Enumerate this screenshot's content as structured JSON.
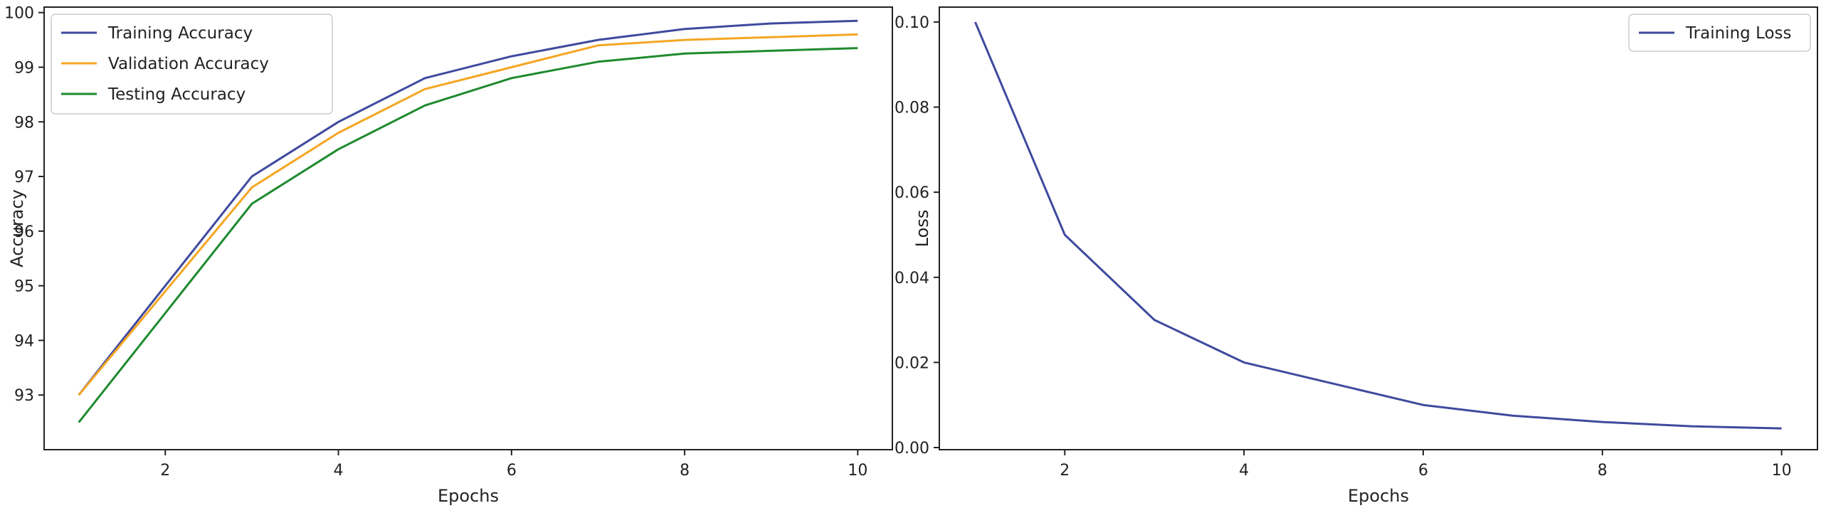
{
  "chart_data": [
    {
      "type": "line",
      "title": "",
      "xlabel": "Epochs",
      "ylabel": "Accuracy",
      "xlim": [
        0.6,
        10.4
      ],
      "ylim": [
        92.0,
        100.1
      ],
      "xticks": [
        2,
        4,
        6,
        8,
        10
      ],
      "yticks": [
        93,
        94,
        95,
        96,
        97,
        98,
        99,
        100
      ],
      "grid": false,
      "legend": "top-left",
      "x": [
        1,
        2,
        3,
        4,
        5,
        6,
        7,
        8,
        9,
        10
      ],
      "series": [
        {
          "name": "Training Accuracy",
          "color": "#3f4a9e",
          "values": [
            93.0,
            95.0,
            97.0,
            98.0,
            98.8,
            99.2,
            99.5,
            99.7,
            99.8,
            99.85
          ]
        },
        {
          "name": "Validation Accuracy",
          "color": "#f5a623",
          "values": [
            93.0,
            94.9,
            96.8,
            97.8,
            98.6,
            99.0,
            99.4,
            99.5,
            99.55,
            99.6
          ]
        },
        {
          "name": "Testing Accuracy",
          "color": "#1e8a2e",
          "values": [
            92.5,
            94.5,
            96.5,
            97.5,
            98.3,
            98.8,
            99.1,
            99.25,
            99.3,
            99.35
          ]
        }
      ]
    },
    {
      "type": "line",
      "title": "",
      "xlabel": "Epochs",
      "ylabel": "Loss",
      "xlim": [
        0.6,
        10.4
      ],
      "ylim": [
        -0.0005,
        0.1035
      ],
      "xticks": [
        2,
        4,
        6,
        8,
        10
      ],
      "yticks": [
        "0.00",
        "0.02",
        "0.04",
        "0.06",
        "0.08",
        "0.10"
      ],
      "grid": false,
      "legend": "top-right",
      "x": [
        1,
        2,
        3,
        4,
        5,
        6,
        7,
        8,
        9,
        10
      ],
      "series": [
        {
          "name": "Training Loss",
          "color": "#3f4a9e",
          "values": [
            0.1,
            0.05,
            0.03,
            0.02,
            0.015,
            0.01,
            0.0075,
            0.006,
            0.005,
            0.0045
          ]
        }
      ]
    }
  ]
}
